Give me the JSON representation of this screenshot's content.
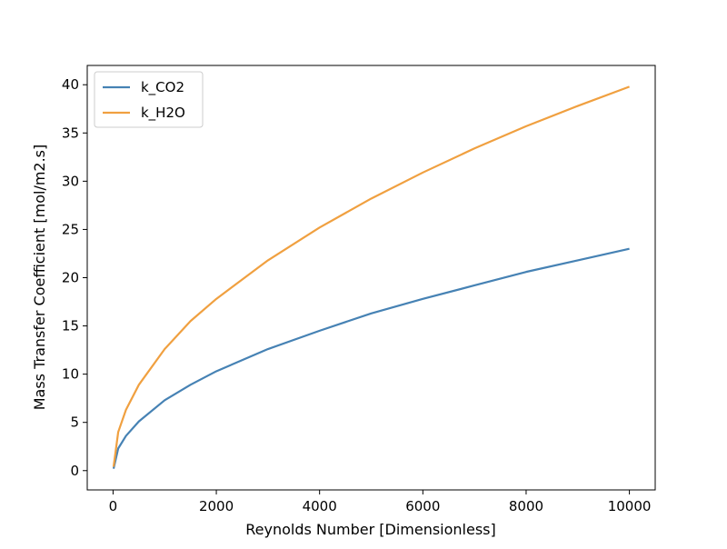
{
  "chart_data": {
    "type": "line",
    "title": "",
    "xlabel": "Reynolds Number [Dimensionless]",
    "ylabel": "Mass Transfer Coefficient [mol/m2.s]",
    "xlim": [
      -500,
      10500
    ],
    "ylim": [
      -2.0,
      42.0
    ],
    "xticks": [
      0,
      2000,
      4000,
      6000,
      8000,
      10000
    ],
    "yticks": [
      0,
      5,
      10,
      15,
      20,
      25,
      30,
      35,
      40
    ],
    "grid": false,
    "legend_position": "top-left",
    "x": [
      10,
      100,
      250,
      500,
      1000,
      1500,
      2000,
      3000,
      4000,
      5000,
      6000,
      7000,
      8000,
      9000,
      10000
    ],
    "series": [
      {
        "name": "k_CO2",
        "color": "#4682b4",
        "values": [
          0.2,
          2.3,
          3.6,
          5.1,
          7.3,
          8.9,
          10.3,
          12.6,
          14.5,
          16.3,
          17.8,
          19.2,
          20.6,
          21.8,
          23.0
        ]
      },
      {
        "name": "k_H2O",
        "color": "#f0a040",
        "values": [
          0.4,
          4.0,
          6.3,
          8.9,
          12.6,
          15.5,
          17.8,
          21.8,
          25.2,
          28.2,
          30.9,
          33.4,
          35.7,
          37.8,
          39.8
        ]
      }
    ]
  }
}
